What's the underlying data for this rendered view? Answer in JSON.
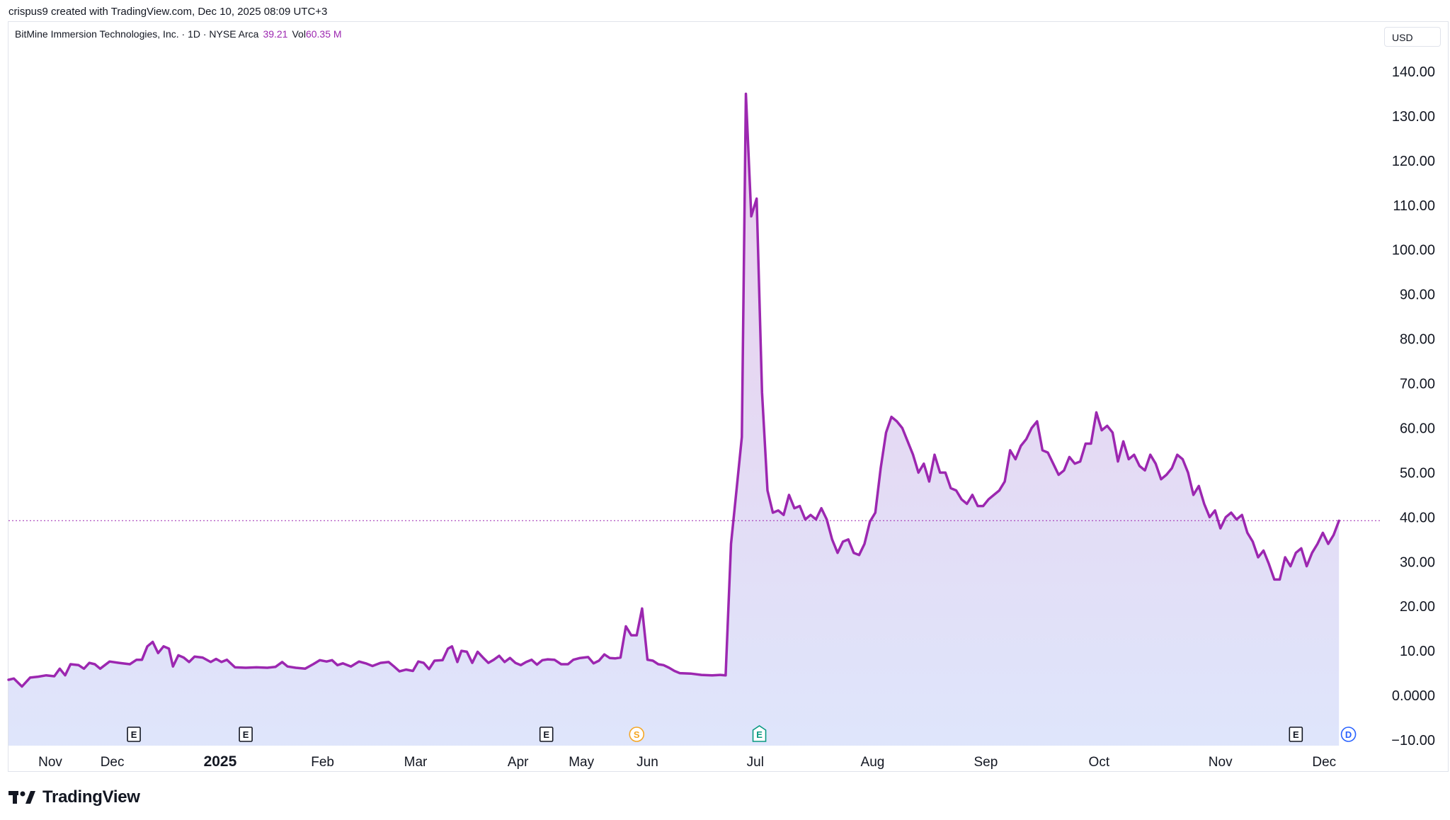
{
  "header": {
    "attribution": "crispus9 created with TradingView.com, Dec 10, 2025 08:09 UTC+3"
  },
  "legend": {
    "symbol": "BitMine Immersion Technologies, Inc. · 1D · NYSE Arca",
    "last_price": "39.21",
    "vol_label": "Vol",
    "vol_value": "60.35 M"
  },
  "currency": "USD",
  "brand": {
    "name": "TradingView"
  },
  "colors": {
    "line": "#9c27b0",
    "fill_top": "#e8c9ea",
    "fill_bottom": "#dde4fb",
    "grid_text": "#131722"
  },
  "chart_data": {
    "type": "area",
    "ylim": [
      -10,
      145
    ],
    "yticks": [
      "140.00",
      "130.00",
      "120.00",
      "110.00",
      "100.00",
      "90.00",
      "80.00",
      "70.00",
      "60.00",
      "50.00",
      "40.00",
      "30.00",
      "20.00",
      "10.00",
      "0.0000",
      "−10.00"
    ],
    "ytick_values": [
      140,
      130,
      120,
      110,
      100,
      90,
      80,
      70,
      60,
      50,
      40,
      30,
      20,
      10,
      0,
      -10
    ],
    "xticks": [
      {
        "label": "Nov",
        "t": 0.031,
        "bold": false
      },
      {
        "label": "Dec",
        "t": 0.077,
        "bold": false
      },
      {
        "label": "2025",
        "t": 0.157,
        "bold": true
      },
      {
        "label": "Feb",
        "t": 0.233,
        "bold": false
      },
      {
        "label": "Mar",
        "t": 0.302,
        "bold": false
      },
      {
        "label": "Apr",
        "t": 0.378,
        "bold": false
      },
      {
        "label": "May",
        "t": 0.425,
        "bold": false
      },
      {
        "label": "Jun",
        "t": 0.474,
        "bold": false
      },
      {
        "label": "Jul",
        "t": 0.554,
        "bold": false
      },
      {
        "label": "Aug",
        "t": 0.641,
        "bold": false
      },
      {
        "label": "Sep",
        "t": 0.725,
        "bold": false
      },
      {
        "label": "Oct",
        "t": 0.809,
        "bold": false
      },
      {
        "label": "Nov",
        "t": 0.899,
        "bold": false
      },
      {
        "label": "Dec",
        "t": 0.976,
        "bold": false
      }
    ],
    "last_value": 39.21,
    "events": [
      {
        "label": "E",
        "t": 0.093,
        "color": "#131722",
        "shape": "square"
      },
      {
        "label": "E",
        "t": 0.176,
        "color": "#131722",
        "shape": "square"
      },
      {
        "label": "E",
        "t": 0.399,
        "color": "#131722",
        "shape": "square"
      },
      {
        "label": "S",
        "t": 0.466,
        "color": "#f5a623",
        "shape": "circle"
      },
      {
        "label": "E",
        "t": 0.557,
        "color": "#089981",
        "shape": "pentagon"
      },
      {
        "label": "E",
        "t": 0.955,
        "color": "#131722",
        "shape": "square"
      },
      {
        "label": "D",
        "t": 0.994,
        "color": "#2962ff",
        "shape": "circle"
      }
    ],
    "series": [
      {
        "values": [
          {
            "t": 0.0,
            "y": 3.5
          },
          {
            "t": 0.004,
            "y": 3.8
          },
          {
            "t": 0.01,
            "y": 2.0
          },
          {
            "t": 0.016,
            "y": 4.0
          },
          {
            "t": 0.022,
            "y": 4.2
          },
          {
            "t": 0.028,
            "y": 4.5
          },
          {
            "t": 0.034,
            "y": 4.3
          },
          {
            "t": 0.038,
            "y": 6.0
          },
          {
            "t": 0.042,
            "y": 4.5
          },
          {
            "t": 0.046,
            "y": 7.0
          },
          {
            "t": 0.052,
            "y": 6.8
          },
          {
            "t": 0.056,
            "y": 6.0
          },
          {
            "t": 0.06,
            "y": 7.3
          },
          {
            "t": 0.064,
            "y": 7.0
          },
          {
            "t": 0.068,
            "y": 6.0
          },
          {
            "t": 0.075,
            "y": 7.6
          },
          {
            "t": 0.082,
            "y": 7.3
          },
          {
            "t": 0.09,
            "y": 7.0
          },
          {
            "t": 0.095,
            "y": 8.0
          },
          {
            "t": 0.099,
            "y": 8.0
          },
          {
            "t": 0.103,
            "y": 11.0
          },
          {
            "t": 0.107,
            "y": 12.0
          },
          {
            "t": 0.111,
            "y": 9.5
          },
          {
            "t": 0.115,
            "y": 11.0
          },
          {
            "t": 0.119,
            "y": 10.5
          },
          {
            "t": 0.122,
            "y": 6.5
          },
          {
            "t": 0.126,
            "y": 9.0
          },
          {
            "t": 0.13,
            "y": 8.5
          },
          {
            "t": 0.134,
            "y": 7.5
          },
          {
            "t": 0.138,
            "y": 8.7
          },
          {
            "t": 0.144,
            "y": 8.5
          },
          {
            "t": 0.15,
            "y": 7.5
          },
          {
            "t": 0.154,
            "y": 8.2
          },
          {
            "t": 0.158,
            "y": 7.5
          },
          {
            "t": 0.162,
            "y": 8.0
          },
          {
            "t": 0.168,
            "y": 6.3
          },
          {
            "t": 0.176,
            "y": 6.2
          },
          {
            "t": 0.184,
            "y": 6.3
          },
          {
            "t": 0.192,
            "y": 6.2
          },
          {
            "t": 0.198,
            "y": 6.4
          },
          {
            "t": 0.203,
            "y": 7.5
          },
          {
            "t": 0.207,
            "y": 6.5
          },
          {
            "t": 0.213,
            "y": 6.2
          },
          {
            "t": 0.22,
            "y": 6.0
          },
          {
            "t": 0.226,
            "y": 7.0
          },
          {
            "t": 0.231,
            "y": 7.9
          },
          {
            "t": 0.236,
            "y": 7.6
          },
          {
            "t": 0.24,
            "y": 7.9
          },
          {
            "t": 0.244,
            "y": 6.8
          },
          {
            "t": 0.248,
            "y": 7.2
          },
          {
            "t": 0.254,
            "y": 6.5
          },
          {
            "t": 0.26,
            "y": 7.6
          },
          {
            "t": 0.265,
            "y": 7.2
          },
          {
            "t": 0.27,
            "y": 6.6
          },
          {
            "t": 0.276,
            "y": 7.3
          },
          {
            "t": 0.282,
            "y": 7.5
          },
          {
            "t": 0.286,
            "y": 6.5
          },
          {
            "t": 0.29,
            "y": 5.4
          },
          {
            "t": 0.295,
            "y": 5.8
          },
          {
            "t": 0.3,
            "y": 5.5
          },
          {
            "t": 0.304,
            "y": 7.6
          },
          {
            "t": 0.308,
            "y": 7.3
          },
          {
            "t": 0.312,
            "y": 5.9
          },
          {
            "t": 0.316,
            "y": 7.8
          },
          {
            "t": 0.322,
            "y": 7.9
          },
          {
            "t": 0.326,
            "y": 10.5
          },
          {
            "t": 0.329,
            "y": 11.0
          },
          {
            "t": 0.333,
            "y": 7.5
          },
          {
            "t": 0.336,
            "y": 10.0
          },
          {
            "t": 0.34,
            "y": 9.8
          },
          {
            "t": 0.344,
            "y": 7.3
          },
          {
            "t": 0.348,
            "y": 9.8
          },
          {
            "t": 0.352,
            "y": 8.5
          },
          {
            "t": 0.356,
            "y": 7.3
          },
          {
            "t": 0.36,
            "y": 8.0
          },
          {
            "t": 0.364,
            "y": 8.9
          },
          {
            "t": 0.368,
            "y": 7.5
          },
          {
            "t": 0.372,
            "y": 8.4
          },
          {
            "t": 0.376,
            "y": 7.3
          },
          {
            "t": 0.38,
            "y": 6.8
          },
          {
            "t": 0.384,
            "y": 7.5
          },
          {
            "t": 0.388,
            "y": 8.0
          },
          {
            "t": 0.392,
            "y": 6.9
          },
          {
            "t": 0.396,
            "y": 7.9
          },
          {
            "t": 0.4,
            "y": 8.1
          },
          {
            "t": 0.405,
            "y": 8.0
          },
          {
            "t": 0.41,
            "y": 7.0
          },
          {
            "t": 0.415,
            "y": 7.0
          },
          {
            "t": 0.419,
            "y": 8.0
          },
          {
            "t": 0.424,
            "y": 8.4
          },
          {
            "t": 0.43,
            "y": 8.6
          },
          {
            "t": 0.434,
            "y": 7.2
          },
          {
            "t": 0.438,
            "y": 7.8
          },
          {
            "t": 0.442,
            "y": 9.2
          },
          {
            "t": 0.446,
            "y": 8.4
          },
          {
            "t": 0.45,
            "y": 8.3
          },
          {
            "t": 0.454,
            "y": 8.5
          },
          {
            "t": 0.458,
            "y": 15.5
          },
          {
            "t": 0.462,
            "y": 13.5
          },
          {
            "t": 0.466,
            "y": 13.5
          },
          {
            "t": 0.47,
            "y": 19.5
          },
          {
            "t": 0.474,
            "y": 8.0
          },
          {
            "t": 0.478,
            "y": 7.8
          },
          {
            "t": 0.482,
            "y": 7.0
          },
          {
            "t": 0.486,
            "y": 6.8
          },
          {
            "t": 0.49,
            "y": 6.2
          },
          {
            "t": 0.494,
            "y": 5.5
          },
          {
            "t": 0.498,
            "y": 5.0
          },
          {
            "t": 0.506,
            "y": 4.9
          },
          {
            "t": 0.514,
            "y": 4.6
          },
          {
            "t": 0.522,
            "y": 4.5
          },
          {
            "t": 0.528,
            "y": 4.6
          },
          {
            "t": 0.532,
            "y": 4.5
          },
          {
            "t": 0.536,
            "y": 34.0
          },
          {
            "t": 0.54,
            "y": 46.0
          },
          {
            "t": 0.544,
            "y": 58.0
          },
          {
            "t": 0.547,
            "y": 135.0
          },
          {
            "t": 0.551,
            "y": 107.5
          },
          {
            "t": 0.555,
            "y": 111.5
          },
          {
            "t": 0.559,
            "y": 68.0
          },
          {
            "t": 0.563,
            "y": 46.0
          },
          {
            "t": 0.567,
            "y": 41.0
          },
          {
            "t": 0.571,
            "y": 41.5
          },
          {
            "t": 0.575,
            "y": 40.5
          },
          {
            "t": 0.579,
            "y": 45.0
          },
          {
            "t": 0.583,
            "y": 42.0
          },
          {
            "t": 0.587,
            "y": 42.5
          },
          {
            "t": 0.591,
            "y": 39.5
          },
          {
            "t": 0.595,
            "y": 40.5
          },
          {
            "t": 0.599,
            "y": 39.5
          },
          {
            "t": 0.603,
            "y": 42.0
          },
          {
            "t": 0.607,
            "y": 39.5
          },
          {
            "t": 0.611,
            "y": 35.0
          },
          {
            "t": 0.615,
            "y": 32.0
          },
          {
            "t": 0.619,
            "y": 34.5
          },
          {
            "t": 0.623,
            "y": 35.0
          },
          {
            "t": 0.627,
            "y": 32.0
          },
          {
            "t": 0.631,
            "y": 31.5
          },
          {
            "t": 0.635,
            "y": 34.0
          },
          {
            "t": 0.639,
            "y": 39.0
          },
          {
            "t": 0.643,
            "y": 41.0
          },
          {
            "t": 0.647,
            "y": 51.0
          },
          {
            "t": 0.651,
            "y": 59.0
          },
          {
            "t": 0.655,
            "y": 62.5
          },
          {
            "t": 0.659,
            "y": 61.5
          },
          {
            "t": 0.663,
            "y": 60.0
          },
          {
            "t": 0.667,
            "y": 57.0
          },
          {
            "t": 0.671,
            "y": 54.0
          },
          {
            "t": 0.675,
            "y": 50.0
          },
          {
            "t": 0.679,
            "y": 52.0
          },
          {
            "t": 0.683,
            "y": 48.0
          },
          {
            "t": 0.687,
            "y": 54.0
          },
          {
            "t": 0.691,
            "y": 50.0
          },
          {
            "t": 0.695,
            "y": 50.0
          },
          {
            "t": 0.699,
            "y": 46.5
          },
          {
            "t": 0.703,
            "y": 46.0
          },
          {
            "t": 0.707,
            "y": 44.0
          },
          {
            "t": 0.711,
            "y": 43.0
          },
          {
            "t": 0.715,
            "y": 45.0
          },
          {
            "t": 0.719,
            "y": 42.5
          },
          {
            "t": 0.723,
            "y": 42.5
          },
          {
            "t": 0.727,
            "y": 44.0
          },
          {
            "t": 0.731,
            "y": 45.0
          },
          {
            "t": 0.735,
            "y": 46.0
          },
          {
            "t": 0.739,
            "y": 48.0
          },
          {
            "t": 0.743,
            "y": 55.0
          },
          {
            "t": 0.747,
            "y": 53.0
          },
          {
            "t": 0.751,
            "y": 56.0
          },
          {
            "t": 0.755,
            "y": 57.5
          },
          {
            "t": 0.759,
            "y": 60.0
          },
          {
            "t": 0.763,
            "y": 61.5
          },
          {
            "t": 0.767,
            "y": 55.0
          },
          {
            "t": 0.771,
            "y": 54.5
          },
          {
            "t": 0.775,
            "y": 52.0
          },
          {
            "t": 0.779,
            "y": 49.5
          },
          {
            "t": 0.783,
            "y": 50.5
          },
          {
            "t": 0.787,
            "y": 53.5
          },
          {
            "t": 0.791,
            "y": 52.0
          },
          {
            "t": 0.795,
            "y": 52.5
          },
          {
            "t": 0.799,
            "y": 56.5
          },
          {
            "t": 0.803,
            "y": 56.5
          },
          {
            "t": 0.807,
            "y": 63.5
          },
          {
            "t": 0.811,
            "y": 59.5
          },
          {
            "t": 0.815,
            "y": 60.5
          },
          {
            "t": 0.819,
            "y": 59.0
          },
          {
            "t": 0.823,
            "y": 52.5
          },
          {
            "t": 0.827,
            "y": 57.0
          },
          {
            "t": 0.831,
            "y": 53.0
          },
          {
            "t": 0.835,
            "y": 54.0
          },
          {
            "t": 0.839,
            "y": 51.5
          },
          {
            "t": 0.843,
            "y": 50.5
          },
          {
            "t": 0.847,
            "y": 54.0
          },
          {
            "t": 0.851,
            "y": 52.0
          },
          {
            "t": 0.855,
            "y": 48.5
          },
          {
            "t": 0.859,
            "y": 49.5
          },
          {
            "t": 0.863,
            "y": 51.0
          },
          {
            "t": 0.867,
            "y": 54.0
          },
          {
            "t": 0.871,
            "y": 53.0
          },
          {
            "t": 0.875,
            "y": 50.0
          },
          {
            "t": 0.879,
            "y": 45.0
          },
          {
            "t": 0.883,
            "y": 47.0
          },
          {
            "t": 0.887,
            "y": 43.0
          },
          {
            "t": 0.891,
            "y": 40.0
          },
          {
            "t": 0.895,
            "y": 41.5
          },
          {
            "t": 0.899,
            "y": 37.5
          },
          {
            "t": 0.903,
            "y": 40.0
          },
          {
            "t": 0.907,
            "y": 41.0
          },
          {
            "t": 0.911,
            "y": 39.5
          },
          {
            "t": 0.915,
            "y": 40.5
          },
          {
            "t": 0.919,
            "y": 36.5
          },
          {
            "t": 0.923,
            "y": 34.5
          },
          {
            "t": 0.927,
            "y": 31.0
          },
          {
            "t": 0.931,
            "y": 32.5
          },
          {
            "t": 0.935,
            "y": 29.5
          },
          {
            "t": 0.939,
            "y": 26.0
          },
          {
            "t": 0.943,
            "y": 26.0
          },
          {
            "t": 0.947,
            "y": 31.0
          },
          {
            "t": 0.951,
            "y": 29.0
          },
          {
            "t": 0.955,
            "y": 32.0
          },
          {
            "t": 0.959,
            "y": 33.0
          },
          {
            "t": 0.963,
            "y": 29.0
          },
          {
            "t": 0.967,
            "y": 32.0
          },
          {
            "t": 0.971,
            "y": 34.0
          },
          {
            "t": 0.975,
            "y": 36.5
          },
          {
            "t": 0.979,
            "y": 34.0
          },
          {
            "t": 0.983,
            "y": 36.0
          },
          {
            "t": 0.987,
            "y": 39.2
          }
        ]
      }
    ]
  }
}
